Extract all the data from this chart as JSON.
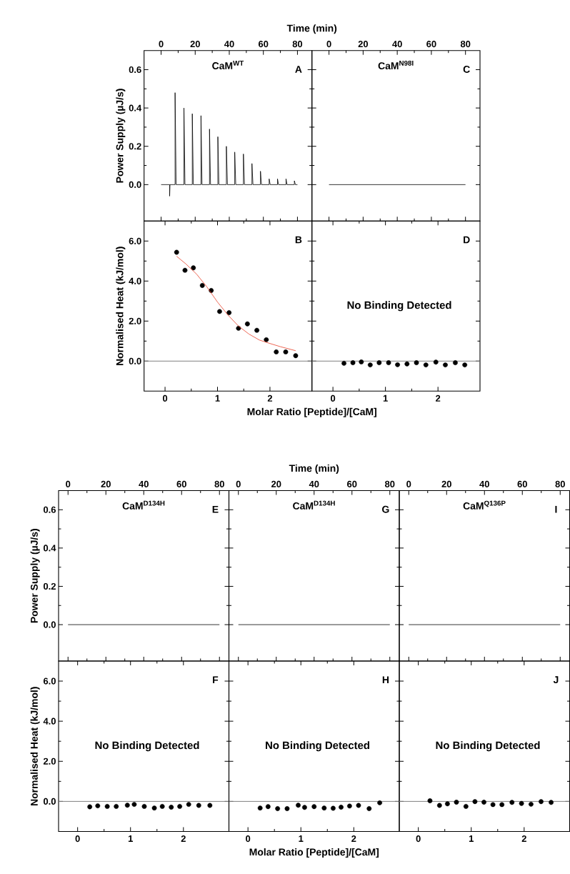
{
  "chart_data": [
    {
      "type": "line",
      "title": "CaM$^{WT}$",
      "xlabel": "Time (min)",
      "ylabel": "Power Supply (µJ/s)",
      "annotations": [
        "A"
      ],
      "color": "#000000",
      "x": [
        0,
        5,
        5,
        5.2,
        8.2,
        8.2,
        8.8,
        13.4,
        13.4,
        14,
        18.3,
        18.3,
        18.9,
        23.4,
        23.4,
        24,
        28.4,
        28.4,
        29,
        33.3,
        33.3,
        33.9,
        38.3,
        38.3,
        38.9,
        43.2,
        43.2,
        43.8,
        48.3,
        48.3,
        48.9,
        53.3,
        53.3,
        53.9,
        58.3,
        58.3,
        58.9,
        63.4,
        63.4,
        64,
        68.3,
        68.3,
        68.9,
        73.3,
        73.3,
        73.9,
        78.2,
        78.2,
        78.8,
        80
      ],
      "values": [
        0,
        0,
        -0.06,
        0,
        0,
        0.48,
        0,
        0,
        0.4,
        0,
        0,
        0.37,
        0,
        0,
        0.36,
        0,
        0,
        0.29,
        0,
        0,
        0.25,
        0,
        0,
        0.2,
        0,
        0,
        0.17,
        0,
        0,
        0.16,
        0,
        0,
        0.11,
        0,
        0,
        0.07,
        0,
        0,
        0.03,
        0,
        0,
        0.03,
        0,
        0,
        0.03,
        0,
        0,
        0.02,
        0,
        0
      ],
      "xlim": [
        -10,
        88.5
      ],
      "xticks": [
        0,
        20,
        40,
        60,
        80
      ],
      "ylim": [
        -0.19,
        0.7
      ],
      "yticks": [
        {
          "value": 0,
          "label": "0.0"
        },
        {
          "value": 0.2,
          "label": "0.2"
        },
        {
          "value": 0.4,
          "label": "0.4"
        },
        {
          "value": 0.6,
          "label": "0.6"
        }
      ]
    },
    {
      "type": "line",
      "title": "CaM$^{N98I}$",
      "annotations": [
        "C"
      ],
      "color": "#000000",
      "x": [
        0,
        80
      ],
      "values": [
        0,
        0
      ],
      "xlim": [
        -10,
        88.5
      ],
      "xticks": [
        0,
        20,
        40,
        60,
        80
      ],
      "ylim": [
        -0.19,
        0.7
      ],
      "yticks": [
        {
          "value": 0,
          "label": null
        },
        {
          "value": 0.2,
          "label": null
        },
        {
          "value": 0.4,
          "label": null
        },
        {
          "value": 0.6,
          "label": null
        }
      ],
      "tick_labels": "x"
    },
    {
      "type": "scatter",
      "xlabel": "Molar Ratio [Peptide]/[CaM]",
      "ylabel": "Normalised Heat (kJ/mol)",
      "annotations": [
        "B"
      ],
      "marker": "circle",
      "series": [
        {
          "type": "scatter",
          "color": "#000000",
          "x": [
            0.22,
            0.38,
            0.54,
            0.71,
            0.88,
            1.04,
            1.22,
            1.4,
            1.57,
            1.75,
            1.93,
            2.12,
            2.3,
            2.49
          ],
          "values": [
            5.44,
            4.54,
            4.66,
            3.78,
            3.53,
            2.48,
            2.42,
            1.64,
            1.86,
            1.54,
            1.07,
            0.46,
            0.46,
            0.27
          ]
        },
        {
          "type": "line",
          "color": "#e8402a",
          "marker": "none",
          "x": [
            0.22,
            0.4,
            0.6,
            0.8,
            1.0,
            1.2,
            1.4,
            1.6,
            1.8,
            2.0,
            2.2,
            2.49
          ],
          "values": [
            5.24,
            4.85,
            4.35,
            3.7,
            2.95,
            2.3,
            1.75,
            1.35,
            1.05,
            0.88,
            0.72,
            0.52
          ]
        }
      ],
      "ref_lines": [
        {
          "axis": "y",
          "value": 0,
          "color": "#808080"
        }
      ],
      "xlim": [
        -0.4,
        2.8
      ],
      "xticks": [
        0,
        1,
        2
      ],
      "ylim": [
        -1.5,
        7
      ],
      "yticks": [
        {
          "value": 0,
          "label": "0.0"
        },
        {
          "value": 2,
          "label": "2.0"
        },
        {
          "value": 4,
          "label": "4.0"
        },
        {
          "value": 6,
          "label": "6.0"
        }
      ]
    },
    {
      "type": "scatter",
      "annotations": [
        "D",
        "No Binding Detected"
      ],
      "marker": "circle",
      "color": "#000000",
      "x": [
        0.21,
        0.38,
        0.54,
        0.71,
        0.88,
        1.06,
        1.23,
        1.41,
        1.59,
        1.77,
        1.96,
        2.14,
        2.33,
        2.51
      ],
      "values": [
        -0.11,
        -0.08,
        -0.04,
        -0.19,
        -0.08,
        -0.08,
        -0.18,
        -0.14,
        -0.08,
        -0.19,
        -0.05,
        -0.19,
        -0.08,
        -0.19
      ],
      "ref_lines": [
        {
          "axis": "y",
          "value": 0,
          "color": "#808080"
        }
      ],
      "xlim": [
        -0.4,
        2.8
      ],
      "xticks": [
        0,
        1,
        2
      ],
      "ylim": [
        -1.5,
        7
      ],
      "yticks": [
        {
          "value": 0,
          "label": null
        },
        {
          "value": 2,
          "label": null
        },
        {
          "value": 4,
          "label": null
        },
        {
          "value": 6,
          "label": null
        }
      ],
      "tick_labels": "x"
    },
    {
      "type": "line",
      "title": "CaM$^{D134H}$",
      "ylabel": "Power Supply (µJ/s)",
      "annotations": [
        "E"
      ],
      "color": "#000000",
      "x": [
        0,
        80
      ],
      "values": [
        0,
        0
      ],
      "xlim": [
        -5,
        85
      ],
      "xticks": [
        0,
        20,
        40,
        60,
        80
      ],
      "ylim": [
        -0.19,
        0.7
      ],
      "yticks": [
        {
          "value": 0,
          "label": "0.0"
        },
        {
          "value": 0.2,
          "label": "0.2"
        },
        {
          "value": 0.4,
          "label": "0.4"
        },
        {
          "value": 0.6,
          "label": "0.6"
        }
      ]
    },
    {
      "type": "line",
      "title": "CaM$^{D134H}$",
      "xlabel": "Time (min)",
      "annotations": [
        "G"
      ],
      "color": "#000000",
      "x": [
        0,
        80
      ],
      "values": [
        0,
        0
      ],
      "xlim": [
        -5,
        85
      ],
      "xticks": [
        0,
        20,
        40,
        60,
        80
      ],
      "ylim": [
        -0.19,
        0.7
      ],
      "yticks": [
        {
          "value": 0,
          "label": null
        },
        {
          "value": 0.2,
          "label": null
        },
        {
          "value": 0.4,
          "label": null
        },
        {
          "value": 0.6,
          "label": null
        }
      ],
      "tick_labels": "x"
    },
    {
      "type": "line",
      "title": "CaM$^{Q136P}$",
      "annotations": [
        "I"
      ],
      "color": "#000000",
      "x": [
        0,
        80
      ],
      "values": [
        0,
        0
      ],
      "xlim": [
        -5,
        85
      ],
      "xticks": [
        0,
        20,
        40,
        60,
        80
      ],
      "ylim": [
        -0.19,
        0.7
      ],
      "yticks": [
        {
          "value": 0,
          "label": null
        },
        {
          "value": 0.2,
          "label": null
        },
        {
          "value": 0.4,
          "label": null
        },
        {
          "value": 0.6,
          "label": null
        }
      ],
      "tick_labels": "x"
    },
    {
      "type": "scatter",
      "ylabel": "Normalised Heat (kJ/mol)",
      "annotations": [
        "F",
        "No Binding Detected"
      ],
      "marker": "circle",
      "color": "#000000",
      "x": [
        0.23,
        0.38,
        0.56,
        0.73,
        0.94,
        1.07,
        1.26,
        1.45,
        1.6,
        1.77,
        1.93,
        2.1,
        2.29,
        2.5
      ],
      "values": [
        -0.27,
        -0.22,
        -0.25,
        -0.25,
        -0.19,
        -0.15,
        -0.25,
        -0.33,
        -0.25,
        -0.29,
        -0.25,
        -0.15,
        -0.2,
        -0.2
      ],
      "ref_lines": [
        {
          "axis": "y",
          "value": 0,
          "color": "#808080"
        }
      ],
      "xlim": [
        -0.36,
        2.86
      ],
      "xticks": [
        0,
        1,
        2
      ],
      "ylim": [
        -1.5,
        7
      ],
      "yticks": [
        {
          "value": 0,
          "label": "0.0"
        },
        {
          "value": 2,
          "label": "2.0"
        },
        {
          "value": 4,
          "label": "4.0"
        },
        {
          "value": 6,
          "label": "6.0"
        }
      ]
    },
    {
      "type": "scatter",
      "xlabel": "Molar Ratio [Peptide]/[CaM]",
      "annotations": [
        "H",
        "No Binding Detected"
      ],
      "marker": "circle",
      "color": "#000000",
      "x": [
        0.23,
        0.38,
        0.56,
        0.74,
        0.95,
        1.07,
        1.25,
        1.44,
        1.61,
        1.76,
        1.92,
        2.09,
        2.29,
        2.49
      ],
      "values": [
        -0.33,
        -0.26,
        -0.36,
        -0.36,
        -0.19,
        -0.3,
        -0.26,
        -0.33,
        -0.34,
        -0.29,
        -0.23,
        -0.2,
        -0.36,
        -0.07
      ],
      "ref_lines": [
        {
          "axis": "y",
          "value": 0,
          "color": "#808080"
        }
      ],
      "xlim": [
        -0.36,
        2.86
      ],
      "xticks": [
        0,
        1,
        2
      ],
      "ylim": [
        -1.5,
        7
      ],
      "yticks": [
        {
          "value": 0,
          "label": null
        },
        {
          "value": 2,
          "label": null
        },
        {
          "value": 4,
          "label": null
        },
        {
          "value": 6,
          "label": null
        }
      ],
      "tick_labels": "x"
    },
    {
      "type": "scatter",
      "annotations": [
        "J",
        "No Binding Detected"
      ],
      "marker": "circle",
      "color": "#000000",
      "x": [
        0.22,
        0.4,
        0.55,
        0.72,
        0.9,
        1.07,
        1.24,
        1.41,
        1.58,
        1.77,
        1.95,
        2.13,
        2.32,
        2.51
      ],
      "values": [
        0.03,
        -0.2,
        -0.12,
        -0.04,
        -0.25,
        -0.01,
        -0.04,
        -0.16,
        -0.16,
        -0.05,
        -0.1,
        -0.14,
        -0.01,
        -0.05
      ],
      "ref_lines": [
        {
          "axis": "y",
          "value": 0,
          "color": "#808080"
        }
      ],
      "xlim": [
        -0.36,
        2.86
      ],
      "xticks": [
        0,
        1,
        2
      ],
      "ylim": [
        -1.5,
        7
      ],
      "yticks": [
        {
          "value": 0,
          "label": null
        },
        {
          "value": 2,
          "label": null
        },
        {
          "value": 4,
          "label": null
        },
        {
          "value": 6,
          "label": null
        }
      ],
      "tick_labels": "x"
    }
  ]
}
